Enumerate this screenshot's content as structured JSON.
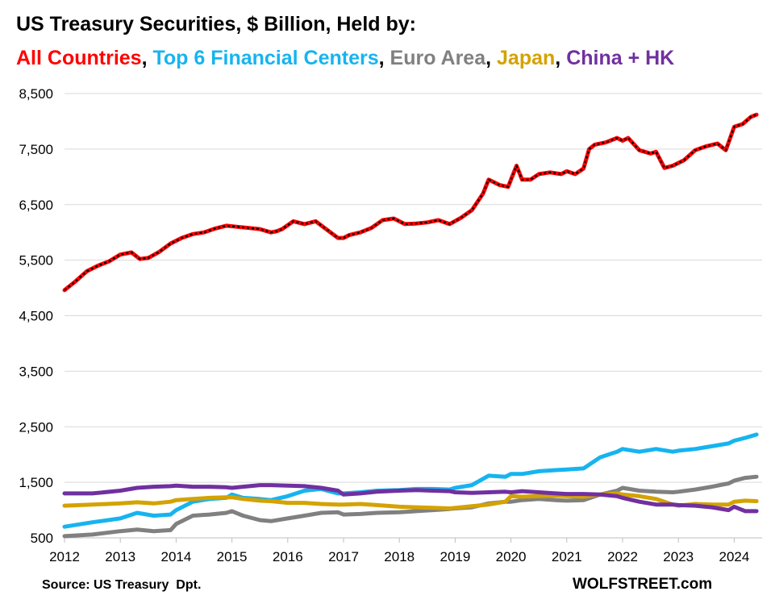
{
  "title": "US Treasury Securities, $ Billion, Held by:",
  "legend": [
    {
      "label": "All Countries",
      "color": "#ff0000",
      "sep": ", "
    },
    {
      "label": "Top 6 Financial Centers",
      "color": "#16b4ef",
      "sep": ", "
    },
    {
      "label": "Euro Area",
      "color": "#808080",
      "sep": ", "
    },
    {
      "label": "Japan",
      "color": "#d4a202",
      "sep": ", "
    },
    {
      "label": "China + HK",
      "color": "#7030a0",
      "sep": ""
    }
  ],
  "source": "Source: US Treasury  Dpt.",
  "brand": "WOLFSTREET.com",
  "chart_data": {
    "type": "line",
    "title": "US Treasury Securities, $ Billion, Held by:",
    "xlabel": "",
    "ylabel": "",
    "xlim": [
      2012,
      2024.5
    ],
    "ylim": [
      500,
      8500
    ],
    "yticks": [
      500,
      1500,
      2500,
      3500,
      4500,
      5500,
      6500,
      7500,
      8500
    ],
    "ytick_labels": [
      "500",
      "1,500",
      "2,500",
      "3,500",
      "4,500",
      "5,500",
      "6,500",
      "7,500",
      "8,500"
    ],
    "xticks": [
      2012,
      2013,
      2014,
      2015,
      2016,
      2017,
      2018,
      2019,
      2020,
      2021,
      2022,
      2023,
      2024
    ],
    "xtick_labels": [
      "2012",
      "2013",
      "2014",
      "2015",
      "2016",
      "2017",
      "2018",
      "2019",
      "2020",
      "2021",
      "2022",
      "2023",
      "2024"
    ],
    "grid": "horizontal",
    "series": [
      {
        "name": "Top 6 Financial Centers",
        "color": "#16b4ef",
        "x": [
          2012.0,
          2012.5,
          2013.0,
          2013.3,
          2013.6,
          2013.9,
          2014.0,
          2014.3,
          2014.6,
          2014.9,
          2015.0,
          2015.2,
          2015.5,
          2015.7,
          2016.0,
          2016.3,
          2016.6,
          2016.9,
          2017.0,
          2017.3,
          2017.6,
          2018.0,
          2018.3,
          2018.6,
          2018.9,
          2019.0,
          2019.3,
          2019.6,
          2019.9,
          2020.0,
          2020.2,
          2020.5,
          2020.8,
          2021.0,
          2021.3,
          2021.6,
          2021.9,
          2022.0,
          2022.3,
          2022.6,
          2022.9,
          2023.0,
          2023.3,
          2023.6,
          2023.9,
          2024.0,
          2024.2,
          2024.4
        ],
        "y": [
          700,
          780,
          850,
          950,
          900,
          920,
          1000,
          1150,
          1200,
          1220,
          1280,
          1220,
          1200,
          1180,
          1250,
          1350,
          1380,
          1300,
          1300,
          1320,
          1350,
          1360,
          1380,
          1380,
          1370,
          1400,
          1450,
          1620,
          1600,
          1650,
          1650,
          1700,
          1720,
          1730,
          1750,
          1950,
          2050,
          2100,
          2050,
          2100,
          2050,
          2070,
          2100,
          2150,
          2200,
          2250,
          2300,
          2360
        ]
      },
      {
        "name": "Euro Area",
        "color": "#808080",
        "x": [
          2012.0,
          2012.5,
          2013.0,
          2013.3,
          2013.6,
          2013.9,
          2014.0,
          2014.3,
          2014.6,
          2014.9,
          2015.0,
          2015.2,
          2015.5,
          2015.7,
          2016.0,
          2016.3,
          2016.6,
          2016.9,
          2017.0,
          2017.3,
          2017.6,
          2018.0,
          2018.3,
          2018.6,
          2018.9,
          2019.0,
          2019.3,
          2019.6,
          2019.9,
          2020.0,
          2020.2,
          2020.5,
          2020.8,
          2021.0,
          2021.3,
          2021.6,
          2021.9,
          2022.0,
          2022.3,
          2022.6,
          2022.9,
          2023.0,
          2023.3,
          2023.6,
          2023.9,
          2024.0,
          2024.2,
          2024.4
        ],
        "y": [
          530,
          560,
          620,
          650,
          620,
          640,
          750,
          900,
          920,
          950,
          980,
          900,
          820,
          800,
          850,
          900,
          950,
          960,
          920,
          930,
          950,
          960,
          980,
          1000,
          1020,
          1030,
          1050,
          1120,
          1150,
          1150,
          1180,
          1200,
          1180,
          1170,
          1180,
          1280,
          1350,
          1400,
          1350,
          1330,
          1320,
          1330,
          1370,
          1420,
          1480,
          1530,
          1580,
          1600
        ]
      },
      {
        "name": "Japan",
        "color": "#d4a202",
        "x": [
          2012.0,
          2012.5,
          2013.0,
          2013.3,
          2013.6,
          2013.9,
          2014.0,
          2014.3,
          2014.6,
          2014.9,
          2015.0,
          2015.2,
          2015.5,
          2015.7,
          2016.0,
          2016.3,
          2016.6,
          2016.9,
          2017.0,
          2017.3,
          2017.6,
          2018.0,
          2018.3,
          2018.6,
          2018.9,
          2019.0,
          2019.3,
          2019.6,
          2019.9,
          2020.0,
          2020.2,
          2020.5,
          2020.8,
          2021.0,
          2021.3,
          2021.6,
          2021.9,
          2022.0,
          2022.3,
          2022.6,
          2022.9,
          2023.0,
          2023.3,
          2023.6,
          2023.9,
          2024.0,
          2024.2,
          2024.4
        ],
        "y": [
          1080,
          1100,
          1120,
          1140,
          1120,
          1150,
          1180,
          1200,
          1220,
          1230,
          1230,
          1200,
          1170,
          1160,
          1130,
          1130,
          1110,
          1100,
          1100,
          1110,
          1090,
          1060,
          1050,
          1040,
          1030,
          1040,
          1070,
          1100,
          1150,
          1250,
          1240,
          1250,
          1260,
          1250,
          1240,
          1280,
          1300,
          1280,
          1250,
          1200,
          1100,
          1080,
          1110,
          1100,
          1100,
          1150,
          1170,
          1160
        ]
      },
      {
        "name": "China + HK",
        "color": "#7030a0",
        "x": [
          2012.0,
          2012.5,
          2013.0,
          2013.3,
          2013.6,
          2013.9,
          2014.0,
          2014.3,
          2014.6,
          2014.9,
          2015.0,
          2015.2,
          2015.5,
          2015.7,
          2016.0,
          2016.3,
          2016.6,
          2016.9,
          2017.0,
          2017.3,
          2017.6,
          2018.0,
          2018.3,
          2018.6,
          2018.9,
          2019.0,
          2019.3,
          2019.6,
          2019.9,
          2020.0,
          2020.2,
          2020.5,
          2020.8,
          2021.0,
          2021.3,
          2021.6,
          2021.9,
          2022.0,
          2022.3,
          2022.6,
          2022.9,
          2023.0,
          2023.3,
          2023.6,
          2023.9,
          2024.0,
          2024.2,
          2024.4
        ],
        "y": [
          1300,
          1300,
          1350,
          1400,
          1420,
          1430,
          1440,
          1420,
          1420,
          1410,
          1400,
          1420,
          1450,
          1450,
          1440,
          1430,
          1400,
          1350,
          1280,
          1300,
          1330,
          1350,
          1360,
          1350,
          1340,
          1320,
          1310,
          1320,
          1330,
          1320,
          1340,
          1320,
          1300,
          1290,
          1290,
          1280,
          1250,
          1220,
          1150,
          1100,
          1100,
          1090,
          1080,
          1050,
          1000,
          1060,
          980,
          980
        ]
      },
      {
        "name": "All Countries",
        "color": "#ff0000",
        "dashed": true,
        "x": [
          2012.0,
          2012.2,
          2012.4,
          2012.6,
          2012.8,
          2013.0,
          2013.2,
          2013.35,
          2013.5,
          2013.7,
          2013.9,
          2014.1,
          2014.3,
          2014.5,
          2014.7,
          2014.9,
          2015.1,
          2015.3,
          2015.5,
          2015.7,
          2015.8,
          2015.9,
          2016.1,
          2016.3,
          2016.5,
          2016.7,
          2016.9,
          2017.0,
          2017.1,
          2017.3,
          2017.5,
          2017.7,
          2017.9,
          2018.1,
          2018.3,
          2018.5,
          2018.7,
          2018.9,
          2019.1,
          2019.3,
          2019.5,
          2019.6,
          2019.8,
          2019.95,
          2020.1,
          2020.2,
          2020.35,
          2020.5,
          2020.7,
          2020.9,
          2021.0,
          2021.15,
          2021.3,
          2021.4,
          2021.5,
          2021.7,
          2021.9,
          2022.0,
          2022.1,
          2022.3,
          2022.5,
          2022.6,
          2022.75,
          2022.9,
          2023.1,
          2023.3,
          2023.5,
          2023.7,
          2023.85,
          2024.0,
          2024.15,
          2024.3,
          2024.4
        ],
        "y": [
          4960,
          5120,
          5300,
          5400,
          5480,
          5600,
          5640,
          5520,
          5540,
          5650,
          5800,
          5900,
          5970,
          6000,
          6070,
          6120,
          6100,
          6080,
          6060,
          6000,
          6020,
          6060,
          6200,
          6150,
          6200,
          6050,
          5900,
          5900,
          5950,
          6000,
          6080,
          6220,
          6250,
          6150,
          6160,
          6180,
          6220,
          6150,
          6260,
          6400,
          6700,
          6950,
          6850,
          6820,
          7200,
          6950,
          6950,
          7050,
          7080,
          7050,
          7100,
          7050,
          7150,
          7500,
          7580,
          7620,
          7700,
          7650,
          7700,
          7480,
          7420,
          7450,
          7160,
          7200,
          7300,
          7480,
          7550,
          7600,
          7480,
          7900,
          7950,
          8080,
          8120
        ]
      }
    ]
  }
}
